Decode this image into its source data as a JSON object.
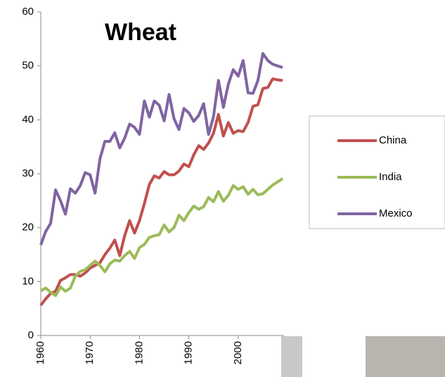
{
  "chart_data": {
    "type": "line",
    "title": "Wheat",
    "x": [
      1960,
      1961,
      1962,
      1963,
      1964,
      1965,
      1966,
      1967,
      1968,
      1969,
      1970,
      1971,
      1972,
      1973,
      1974,
      1975,
      1976,
      1977,
      1978,
      1979,
      1980,
      1981,
      1982,
      1983,
      1984,
      1985,
      1986,
      1987,
      1988,
      1989,
      1990,
      1991,
      1992,
      1993,
      1994,
      1995,
      1996,
      1997,
      1998,
      1999,
      2000,
      2001,
      2002,
      2003,
      2004,
      2005,
      2006,
      2007,
      2008,
      2009
    ],
    "series": [
      {
        "name": "China",
        "color": "#c0504d",
        "values": [
          5.6,
          6.8,
          7.8,
          8.2,
          10.2,
          10.7,
          11.3,
          11.3,
          11.0,
          11.6,
          12.5,
          13.0,
          13.5,
          15.0,
          16.2,
          17.7,
          14.8,
          18.5,
          21.3,
          19.0,
          21.3,
          24.5,
          28.0,
          29.6,
          29.2,
          30.4,
          29.8,
          29.8,
          30.5,
          31.8,
          31.3,
          33.5,
          35.2,
          34.5,
          35.7,
          37.5,
          41.0,
          37.0,
          39.5,
          37.5,
          38.0,
          37.8,
          39.5,
          42.5,
          42.8,
          45.8,
          46.0,
          47.6,
          47.4,
          47.3
        ]
      },
      {
        "name": "India",
        "color": "#9bbb59",
        "values": [
          8.3,
          8.8,
          8.0,
          7.4,
          9.0,
          8.2,
          8.8,
          11.0,
          11.9,
          12.2,
          13.0,
          13.8,
          13.0,
          11.8,
          13.3,
          14.0,
          13.8,
          14.8,
          15.6,
          14.3,
          16.3,
          16.9,
          18.2,
          18.5,
          18.7,
          20.5,
          19.2,
          20.0,
          22.3,
          21.3,
          22.8,
          24.0,
          23.4,
          23.9,
          25.6,
          24.8,
          26.7,
          24.9,
          26.0,
          27.8,
          27.1,
          27.6,
          26.2,
          27.1,
          26.1,
          26.3,
          27.1,
          27.9,
          28.5,
          29.1
        ]
      },
      {
        "name": "Mexico",
        "color": "#8064a2",
        "values": [
          16.8,
          19.3,
          20.8,
          27.0,
          25.0,
          22.5,
          27.2,
          26.4,
          27.8,
          30.2,
          29.8,
          26.4,
          32.8,
          36.0,
          36.0,
          37.6,
          34.8,
          36.6,
          39.2,
          38.6,
          37.3,
          43.5,
          40.5,
          43.5,
          42.7,
          39.8,
          44.7,
          40.2,
          38.2,
          42.1,
          41.3,
          39.7,
          40.8,
          43.0,
          37.3,
          40.6,
          47.3,
          42.3,
          46.6,
          49.3,
          48.1,
          51.0,
          45.0,
          44.9,
          47.3,
          52.3,
          51.0,
          50.3,
          50.0,
          49.7
        ]
      }
    ],
    "xlim": [
      1960,
      2009
    ],
    "xticks": [
      1960,
      1970,
      1980,
      1990,
      2000
    ],
    "ylim": [
      0,
      60
    ],
    "yticks": [
      0,
      10,
      20,
      30,
      40,
      50,
      60
    ]
  }
}
